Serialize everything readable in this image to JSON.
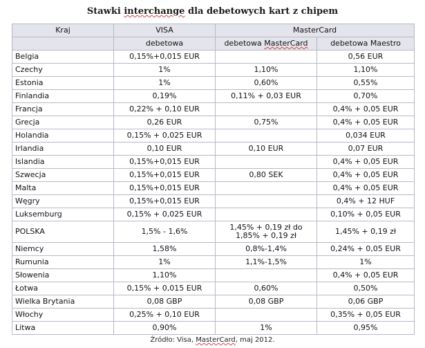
{
  "title": {
    "prefix": "Stawki ",
    "highlight": "interchange",
    "suffix": " dla debetowych kart z chipem"
  },
  "headers": {
    "kraj": "Kraj",
    "visa": "VISA",
    "mastercard": "MasterCard",
    "visa_debetowa": "debetowa",
    "mc_debetowa_prefix": "debetowa ",
    "mc_debetowa_name": "MasterCard",
    "mc_maestro": "debetowa Maestro"
  },
  "rows": [
    {
      "country": "Belgia",
      "visa": "0,15%+0,015 EUR",
      "mastercard": "",
      "maestro": "0,56 EUR"
    },
    {
      "country": "Czechy",
      "visa": "1%",
      "mastercard": "1,10%",
      "maestro": "1,10%"
    },
    {
      "country": "Estonia",
      "visa": "1%",
      "mastercard": "0,60%",
      "maestro": "0,55%"
    },
    {
      "country": "Finlandia",
      "visa": "0,19%",
      "mastercard": "0,11% + 0,03 EUR",
      "maestro": "0,70%"
    },
    {
      "country": "Francja",
      "visa": "0,22% + 0,10 EUR",
      "mastercard": "",
      "maestro": "0,4% + 0,05 EUR"
    },
    {
      "country": "Grecja",
      "visa": "0,26 EUR",
      "mastercard": "0,75%",
      "maestro": "0,4% + 0,05 EUR"
    },
    {
      "country": "Holandia",
      "visa": "0,15% + 0,025 EUR",
      "mastercard": "",
      "maestro": "0,034 EUR"
    },
    {
      "country": "Irlandia",
      "visa": "0,10 EUR",
      "mastercard": "0,10 EUR",
      "maestro": "0,07 EUR"
    },
    {
      "country": "Islandia",
      "visa": "0,15%+0,015 EUR",
      "mastercard": "",
      "maestro": "0,4% + 0,05 EUR"
    },
    {
      "country": "Szwecja",
      "visa": "0,15%+0,015 EUR",
      "mastercard": "0,80 SEK",
      "maestro": "0,4% + 0,05 EUR"
    },
    {
      "country": "Malta",
      "visa": "0,15%+0,015 EUR",
      "mastercard": "",
      "maestro": "0,4% + 0,05 EUR"
    },
    {
      "country": "Węgry",
      "visa": "0,15%+0,015 EUR",
      "mastercard": "",
      "maestro": "0,4% + 12 HUF"
    },
    {
      "country": "Luksemburg",
      "visa": "0,15% + 0,025 EUR",
      "mastercard": "",
      "maestro": "0,10% + 0,05 EUR"
    },
    {
      "country": "POLSKA",
      "visa": "1,5% - 1,6%",
      "mastercard_line1": "1,45% + 0,19 zł do",
      "mastercard_line2": "1,85% + 0,19 zł",
      "maestro": "1,45% + 0,19 zł",
      "tall": true
    },
    {
      "country": "Niemcy",
      "visa": "1,58%",
      "mastercard": "0,8%-1,4%",
      "maestro": "0,24% + 0,05 EUR"
    },
    {
      "country": "Rumunia",
      "visa": "1%",
      "mastercard": "1,1%-1,5%",
      "maestro": "1%"
    },
    {
      "country": "Słowenia",
      "visa": "1,10%",
      "mastercard": "",
      "maestro": "0,4% + 0,05 EUR"
    },
    {
      "country": "Łotwa",
      "visa": "0,15% + 0,015 EUR",
      "mastercard": "0,60%",
      "maestro": "0,50%"
    },
    {
      "country": "Wielka Brytania",
      "visa": "0,08 GBP",
      "mastercard": "0,08 GBP",
      "maestro": "0,06 GBP"
    },
    {
      "country": "Włochy",
      "visa": "0,25% + 0,10 EUR",
      "mastercard": "",
      "maestro": "0,35% + 0,05 EUR"
    },
    {
      "country": "Litwa",
      "visa": "0,90%",
      "mastercard": "1%",
      "maestro": "0,95%"
    }
  ],
  "source": {
    "prefix": "Źródło: Visa, ",
    "highlight": "MasterCard",
    "suffix": ", maj 2012."
  }
}
